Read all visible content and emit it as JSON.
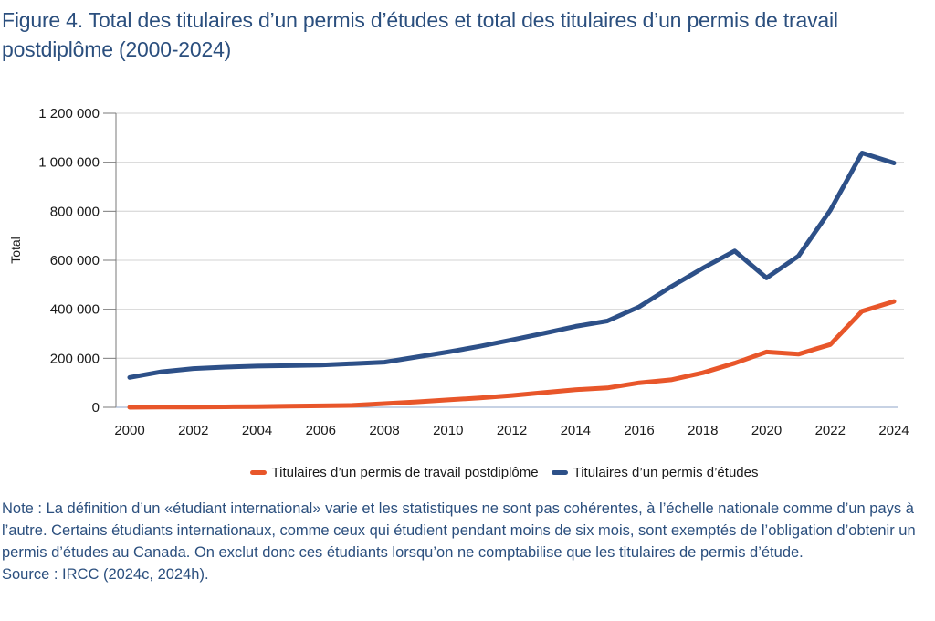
{
  "title": "Figure 4. Total des titulaires d’un permis d’études et total des titulaires d’un permis de travail postdiplôme (2000-2024)",
  "note": "Note : La définition d’un «étudiant international» varie et les statistiques ne sont pas cohérentes, à l’échelle nationale comme d’un pays à l’autre. Certains étudiants internationaux, comme ceux qui étudient pendant moins de six mois, sont exemptés de l’obligation d’obtenir un permis d’études au Canada. On exclut donc ces étudiants lorsqu’on ne comptabilise que les titulaires de permis d’étude.",
  "source": "Source : IRCC (2024c, 2024h).",
  "chart_data": {
    "type": "line",
    "title": "Figure 4. Total des titulaires d’un permis d’études et total des titulaires d’un permis de travail postdiplôme (2000-2024)",
    "xlabel": "",
    "ylabel": "Total",
    "xlim": [
      2000,
      2024
    ],
    "ylim": [
      0,
      1200000
    ],
    "grid": true,
    "legend_position": "bottom",
    "x": [
      2000,
      2001,
      2002,
      2003,
      2004,
      2005,
      2006,
      2007,
      2008,
      2009,
      2010,
      2011,
      2012,
      2013,
      2014,
      2015,
      2016,
      2017,
      2018,
      2019,
      2020,
      2021,
      2022,
      2023,
      2024
    ],
    "x_ticks": [
      2000,
      2002,
      2004,
      2006,
      2008,
      2010,
      2012,
      2014,
      2016,
      2018,
      2020,
      2022,
      2024
    ],
    "x_tick_labels": [
      "2000",
      "2002",
      "2004",
      "2006",
      "2008",
      "2010",
      "2012",
      "2014",
      "2016",
      "2018",
      "2020",
      "2022",
      "2024"
    ],
    "y_ticks": [
      0,
      200000,
      400000,
      600000,
      800000,
      1000000,
      1200000
    ],
    "y_tick_labels": [
      "0",
      "200 000",
      "400 000",
      "600 000",
      "800 000",
      "1 000 000",
      "1 200 000"
    ],
    "series": [
      {
        "name": "Titulaires d’un permis de travail postdiplôme",
        "color": "#e8562a",
        "values": [
          0,
          1000,
          1000,
          2000,
          3000,
          5000,
          6000,
          8000,
          15000,
          22000,
          30000,
          38000,
          48000,
          60000,
          72000,
          79000,
          100000,
          112000,
          141000,
          180000,
          226000,
          217000,
          256000,
          392000,
          432000
        ]
      },
      {
        "name": "Titulaires d’un permis d’études",
        "color": "#2d5088",
        "values": [
          122000,
          145000,
          158000,
          164000,
          168000,
          170000,
          172000,
          178000,
          184000,
          205000,
          226000,
          249000,
          275000,
          302000,
          330000,
          352000,
          410000,
          492000,
          568000,
          638000,
          528000,
          617000,
          804000,
          1038000,
          997000
        ]
      }
    ]
  }
}
